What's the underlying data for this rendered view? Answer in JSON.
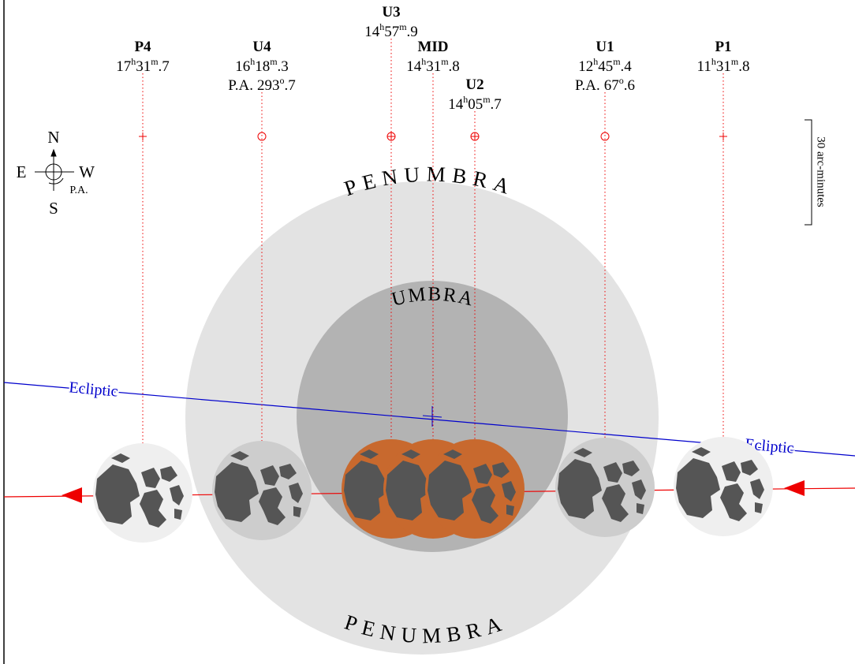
{
  "compass": {
    "north": "N",
    "south": "S",
    "east": "E",
    "west": "W",
    "position_angle": "P.A."
  },
  "scale_label": "30 arc-minutes",
  "shadow_labels": {
    "penumbra_top": "PENUMBRA",
    "umbra": "UMBRA",
    "penumbra_bottom": "PENUMBRA"
  },
  "ecliptic_labels": [
    "Ecliptic",
    "Ecliptic"
  ],
  "units": {
    "hour": "h",
    "minute": "m",
    "degree": "o"
  },
  "contacts": [
    {
      "label": "P4",
      "hours": "17",
      "minutes": "31",
      "fraction": ".7"
    },
    {
      "label": "U4",
      "hours": "16",
      "minutes": "18",
      "fraction": ".3",
      "pa": {
        "prefix": "P.A.",
        "degrees": "293",
        "fraction": ".7"
      }
    },
    {
      "label": "U3",
      "hours": "14",
      "minutes": "57",
      "fraction": ".9"
    },
    {
      "label": "MID",
      "hours": "14",
      "minutes": "31",
      "fraction": ".8"
    },
    {
      "label": "U2",
      "hours": "14",
      "minutes": "05",
      "fraction": ".7"
    },
    {
      "label": "U1",
      "hours": "12",
      "minutes": "45",
      "fraction": ".4",
      "pa": {
        "prefix": "P.A.",
        "degrees": "67",
        "fraction": ".6"
      }
    },
    {
      "label": "P1",
      "hours": "11",
      "minutes": "31",
      "fraction": ".8"
    }
  ]
}
